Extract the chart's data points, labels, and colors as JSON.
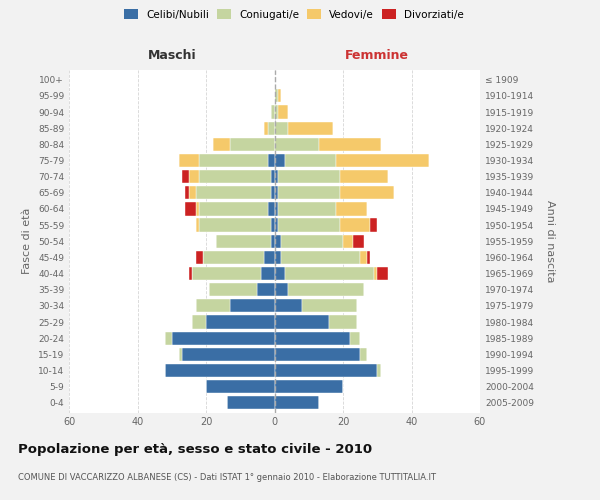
{
  "age_groups": [
    "0-4",
    "5-9",
    "10-14",
    "15-19",
    "20-24",
    "25-29",
    "30-34",
    "35-39",
    "40-44",
    "45-49",
    "50-54",
    "55-59",
    "60-64",
    "65-69",
    "70-74",
    "75-79",
    "80-84",
    "85-89",
    "90-94",
    "95-99",
    "100+"
  ],
  "birth_years": [
    "2005-2009",
    "2000-2004",
    "1995-1999",
    "1990-1994",
    "1985-1989",
    "1980-1984",
    "1975-1979",
    "1970-1974",
    "1965-1969",
    "1960-1964",
    "1955-1959",
    "1950-1954",
    "1945-1949",
    "1940-1944",
    "1935-1939",
    "1930-1934",
    "1925-1929",
    "1920-1924",
    "1915-1919",
    "1910-1914",
    "≤ 1909"
  ],
  "males": {
    "celibi": [
      14,
      20,
      32,
      27,
      30,
      20,
      13,
      5,
      4,
      3,
      1,
      1,
      2,
      1,
      1,
      2,
      0,
      0,
      0,
      0,
      0
    ],
    "coniugati": [
      0,
      0,
      0,
      1,
      2,
      4,
      10,
      14,
      20,
      18,
      16,
      21,
      20,
      22,
      21,
      20,
      13,
      2,
      1,
      0,
      0
    ],
    "vedovi": [
      0,
      0,
      0,
      0,
      0,
      0,
      0,
      0,
      0,
      0,
      0,
      1,
      1,
      2,
      3,
      6,
      5,
      1,
      0,
      0,
      0
    ],
    "divorziati": [
      0,
      0,
      0,
      0,
      0,
      0,
      0,
      0,
      1,
      2,
      0,
      0,
      3,
      1,
      2,
      0,
      0,
      0,
      0,
      0,
      0
    ]
  },
  "females": {
    "nubili": [
      13,
      20,
      30,
      25,
      22,
      16,
      8,
      4,
      3,
      2,
      2,
      1,
      1,
      1,
      1,
      3,
      0,
      0,
      0,
      0,
      0
    ],
    "coniugate": [
      0,
      0,
      1,
      2,
      3,
      8,
      16,
      22,
      26,
      23,
      18,
      18,
      17,
      18,
      18,
      15,
      13,
      4,
      1,
      1,
      0
    ],
    "vedove": [
      0,
      0,
      0,
      0,
      0,
      0,
      0,
      0,
      1,
      2,
      3,
      9,
      9,
      16,
      14,
      27,
      18,
      13,
      3,
      1,
      0
    ],
    "divorziate": [
      0,
      0,
      0,
      0,
      0,
      0,
      0,
      0,
      3,
      1,
      3,
      2,
      0,
      0,
      0,
      0,
      0,
      0,
      0,
      0,
      0
    ]
  },
  "colors": {
    "celibi": "#3A6EA5",
    "coniugati": "#C5D5A0",
    "vedovi": "#F5C96A",
    "divorziati": "#CC2222"
  },
  "xlim": 60,
  "title": "Popolazione per età, sesso e stato civile - 2010",
  "subtitle": "COMUNE DI VACCARIZZO ALBANESE (CS) - Dati ISTAT 1° gennaio 2010 - Elaborazione TUTTITALIA.IT",
  "xlabel_left": "Maschi",
  "xlabel_right": "Femmine",
  "ylabel_left": "Fasce di età",
  "ylabel_right": "Anni di nascita",
  "bg_color": "#F2F2F2",
  "plot_bg": "#FFFFFF"
}
